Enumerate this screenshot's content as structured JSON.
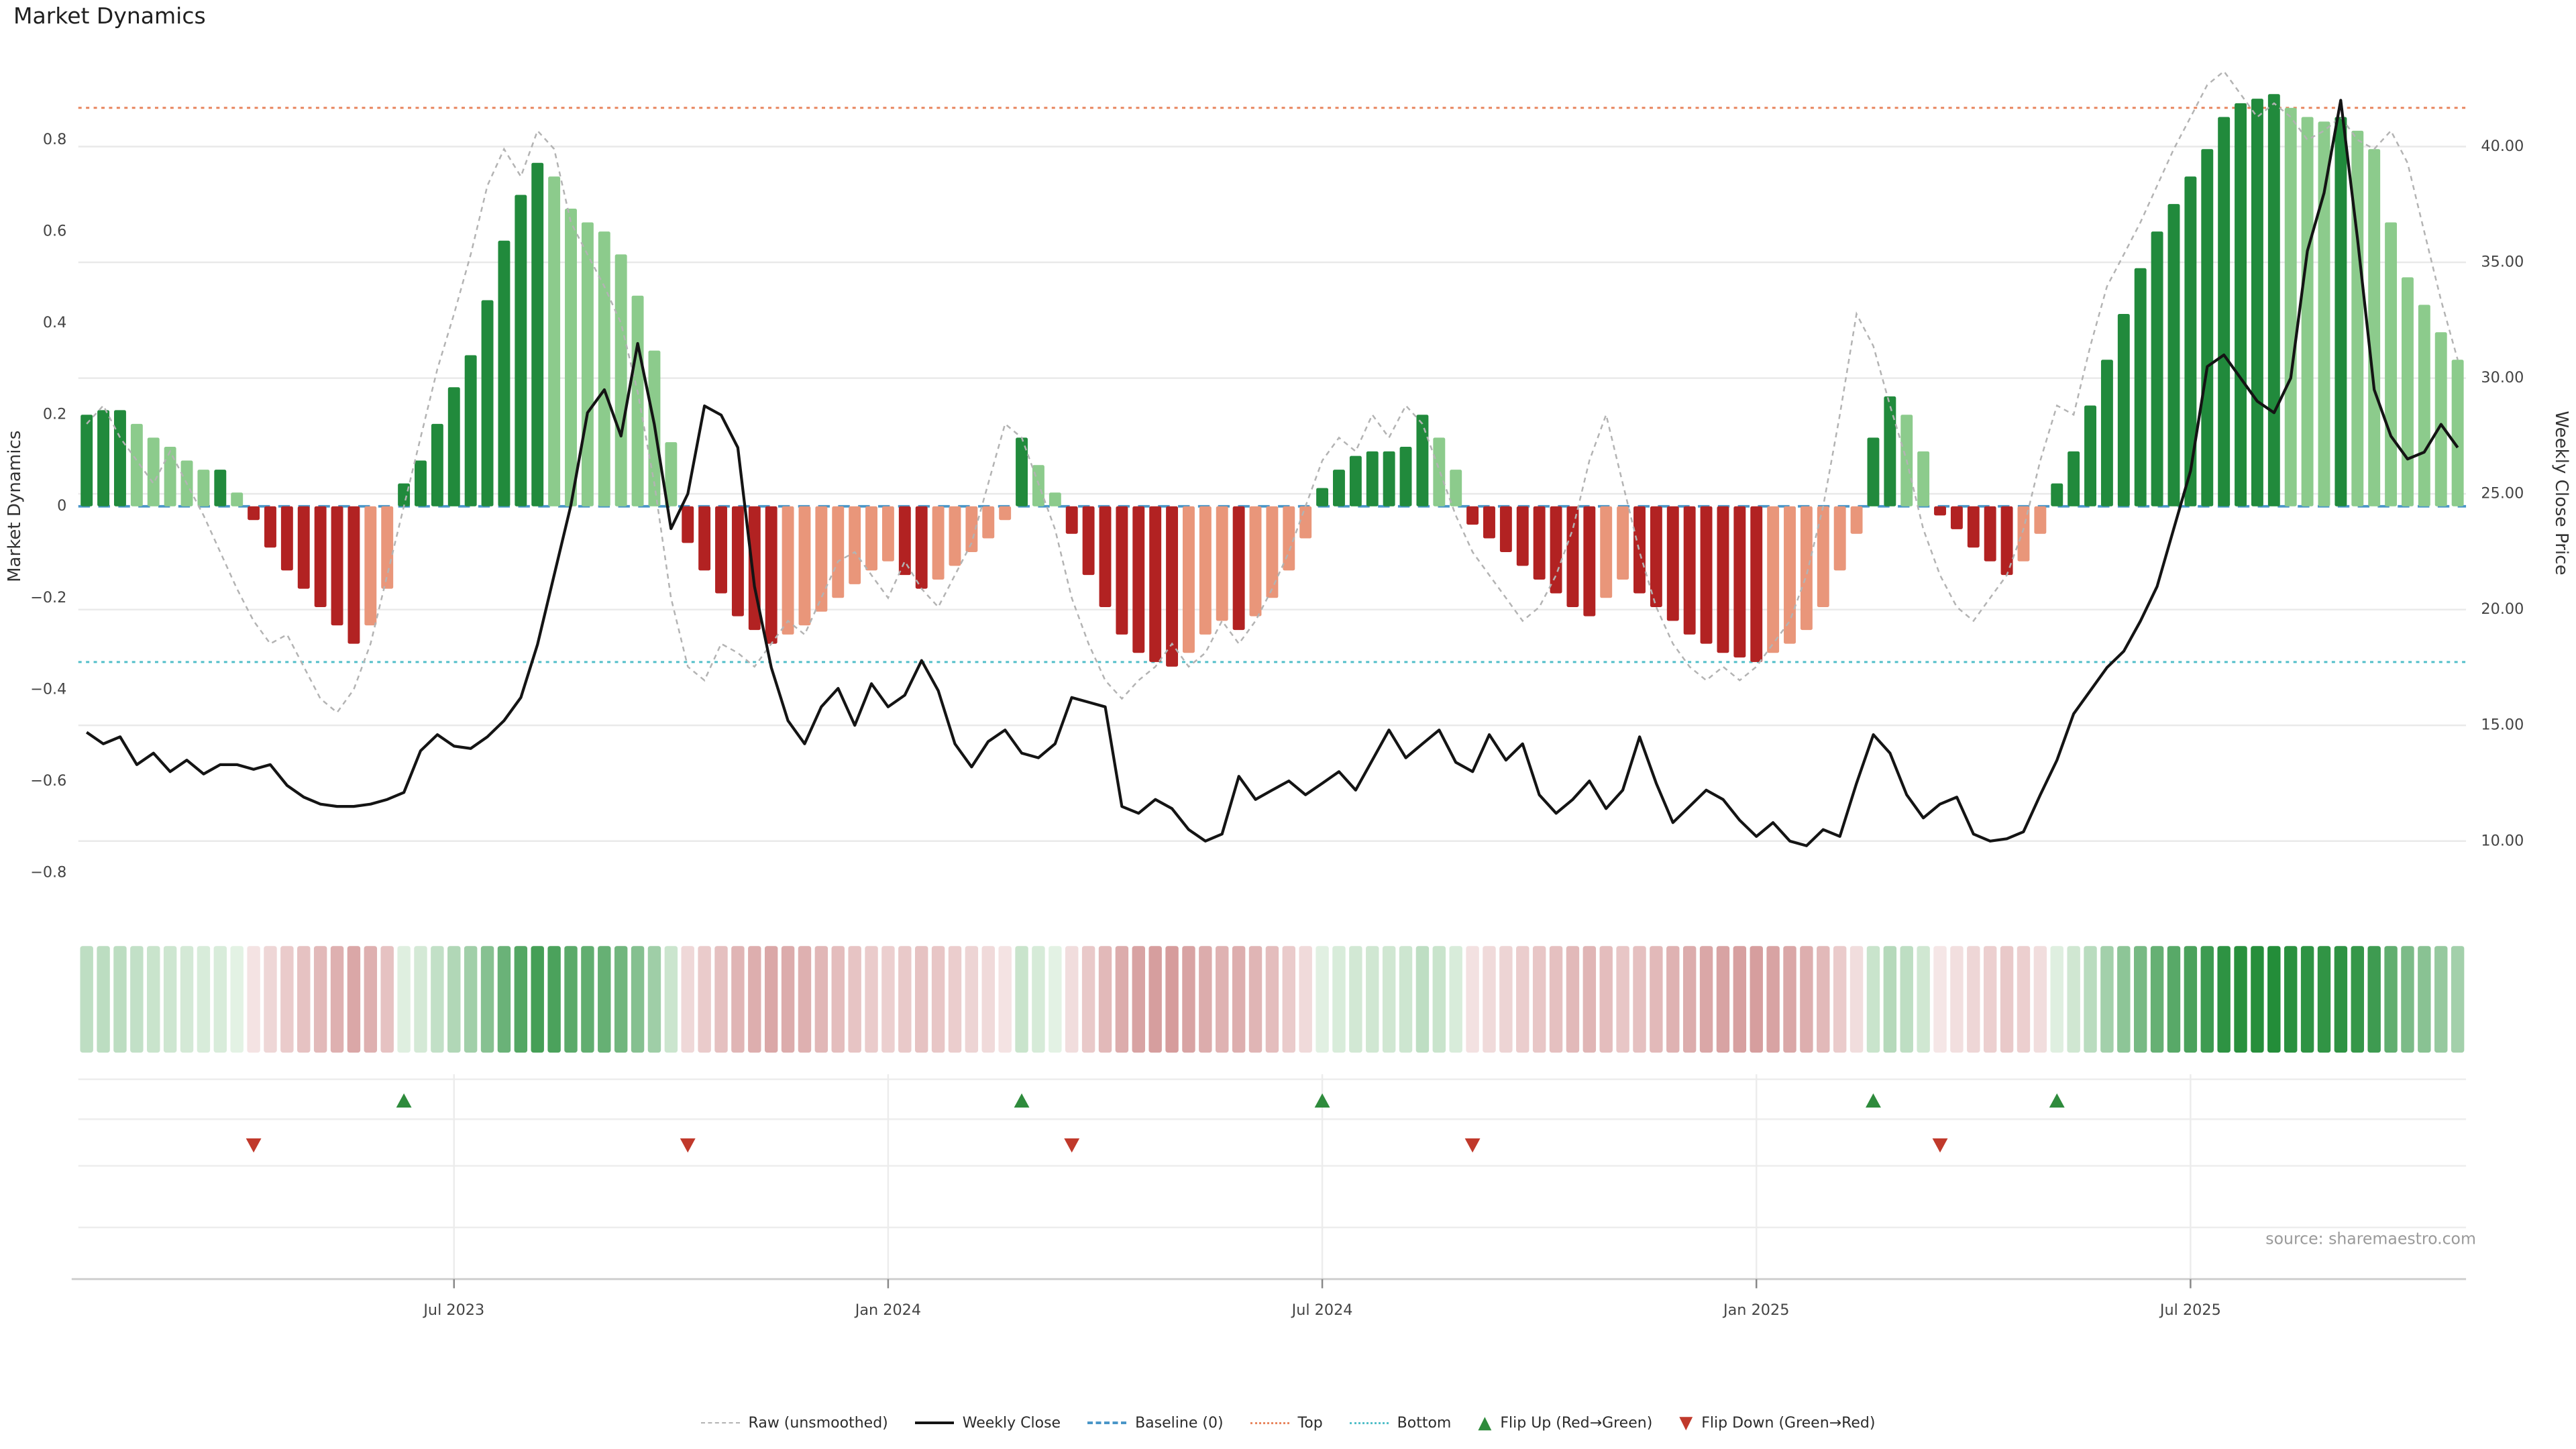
{
  "title": "Market Dynamics",
  "source": "source: sharemaestro.com",
  "colors": {
    "bar_green_dark": "#218a3c",
    "bar_green_light": "#8ccb8c",
    "bar_red_dark": "#b22222",
    "bar_red_light": "#e9967a",
    "raw_line": "#b3b3b3",
    "close_line": "#141414",
    "baseline": "#4a96c8",
    "top_line": "#e8865f",
    "bottom_line": "#53bfc9",
    "grid": "#e9e9e9",
    "axis_line": "#cfcfcf",
    "tick_text": "#444444",
    "axis_title_text": "#333333",
    "source_text": "#9a9a9a",
    "flip_up": "#2e8b3c",
    "flip_down": "#c0392b",
    "heat_pos_strong": "#1f8b35",
    "heat_pos_weak": "#eaf5ea",
    "heat_neg_strong": "#9f1d1d",
    "heat_neg_weak": "#f7eaea"
  },
  "left_axis": {
    "label": "Market Dynamics",
    "ticks": [
      {
        "label": "0.8",
        "v": 0.8
      },
      {
        "label": "0.6",
        "v": 0.6
      },
      {
        "label": "0.4",
        "v": 0.4
      },
      {
        "label": "0.2",
        "v": 0.2
      },
      {
        "label": "0",
        "v": 0
      },
      {
        "label": "−0.2",
        "v": -0.2
      },
      {
        "label": "−0.4",
        "v": -0.4
      },
      {
        "label": "−0.6",
        "v": -0.6
      },
      {
        "label": "−0.8",
        "v": -0.8
      }
    ]
  },
  "right_axis": {
    "label": "Weekly Close Price",
    "ticks": [
      {
        "label": "40.00",
        "v": 40
      },
      {
        "label": "35.00",
        "v": 35
      },
      {
        "label": "30.00",
        "v": 30
      },
      {
        "label": "25.00",
        "v": 25
      },
      {
        "label": "20.00",
        "v": 20
      },
      {
        "label": "15.00",
        "v": 15
      },
      {
        "label": "10.00",
        "v": 10
      }
    ]
  },
  "legend": {
    "items": [
      {
        "label": "Raw (unsmoothed)"
      },
      {
        "label": "Weekly Close"
      },
      {
        "label": "Baseline (0)"
      },
      {
        "label": "Top"
      },
      {
        "label": "Bottom"
      },
      {
        "label": "Flip Up (Red→Green)"
      },
      {
        "label": "Flip Down (Green→Red)"
      }
    ]
  },
  "chart_data": {
    "type": "bar+line",
    "weeks": 143,
    "x_ticks": [
      {
        "week": 22,
        "label": "Jul 2023"
      },
      {
        "week": 48,
        "label": "Jan 2024"
      },
      {
        "week": 74,
        "label": "Jul 2024"
      },
      {
        "week": 100,
        "label": "Jan 2025"
      },
      {
        "week": 126,
        "label": "Jul 2025"
      }
    ],
    "left_ylim": [
      -0.9,
      1.0
    ],
    "right_ylim": [
      8.5,
      43
    ],
    "reference_lines": {
      "baseline": 0,
      "top": 0.87,
      "bottom": -0.34
    },
    "flip_up_weeks": [
      19,
      56,
      74,
      107,
      118
    ],
    "flip_down_weeks": [
      10,
      36,
      59,
      83,
      111
    ],
    "series": [
      {
        "name": "Market Dynamics (smoothed)",
        "type": "bar",
        "axis": "left",
        "values": [
          0.2,
          0.21,
          0.21,
          0.18,
          0.15,
          0.13,
          0.1,
          0.08,
          0.08,
          0.03,
          -0.03,
          -0.09,
          -0.14,
          -0.18,
          -0.22,
          -0.26,
          -0.3,
          -0.26,
          -0.18,
          0.05,
          0.1,
          0.18,
          0.26,
          0.33,
          0.45,
          0.58,
          0.68,
          0.75,
          0.72,
          0.65,
          0.62,
          0.6,
          0.55,
          0.46,
          0.34,
          0.14,
          -0.08,
          -0.14,
          -0.19,
          -0.24,
          -0.27,
          -0.3,
          -0.28,
          -0.26,
          -0.23,
          -0.2,
          -0.17,
          -0.14,
          -0.12,
          -0.15,
          -0.18,
          -0.16,
          -0.13,
          -0.1,
          -0.07,
          -0.03,
          0.15,
          0.09,
          0.03,
          -0.06,
          -0.15,
          -0.22,
          -0.28,
          -0.32,
          -0.34,
          -0.35,
          -0.32,
          -0.28,
          -0.25,
          -0.27,
          -0.24,
          -0.2,
          -0.14,
          -0.07,
          0.04,
          0.08,
          0.11,
          0.12,
          0.12,
          0.13,
          0.2,
          0.15,
          0.08,
          -0.04,
          -0.07,
          -0.1,
          -0.13,
          -0.16,
          -0.19,
          -0.22,
          -0.24,
          -0.2,
          -0.16,
          -0.19,
          -0.22,
          -0.25,
          -0.28,
          -0.3,
          -0.32,
          -0.33,
          -0.34,
          -0.32,
          -0.3,
          -0.27,
          -0.22,
          -0.14,
          -0.06,
          0.15,
          0.24,
          0.2,
          0.12,
          -0.02,
          -0.05,
          -0.09,
          -0.12,
          -0.15,
          -0.12,
          -0.06,
          0.05,
          0.12,
          0.22,
          0.32,
          0.42,
          0.52,
          0.6,
          0.66,
          0.72,
          0.78,
          0.85,
          0.88,
          0.89,
          0.9,
          0.87,
          0.85,
          0.84,
          0.85,
          0.82,
          0.78,
          0.62,
          0.5,
          0.44,
          0.38,
          0.32
        ]
      },
      {
        "name": "Raw (unsmoothed)",
        "type": "line",
        "style": "dashed",
        "axis": "left",
        "values": [
          0.18,
          0.22,
          0.15,
          0.1,
          0.05,
          0.12,
          0.05,
          -0.02,
          -0.1,
          -0.18,
          -0.25,
          -0.3,
          -0.28,
          -0.35,
          -0.42,
          -0.45,
          -0.4,
          -0.3,
          -0.15,
          0.0,
          0.15,
          0.3,
          0.42,
          0.55,
          0.7,
          0.78,
          0.72,
          0.82,
          0.78,
          0.62,
          0.55,
          0.48,
          0.4,
          0.25,
          0.05,
          -0.2,
          -0.35,
          -0.38,
          -0.3,
          -0.32,
          -0.35,
          -0.3,
          -0.25,
          -0.28,
          -0.2,
          -0.12,
          -0.1,
          -0.15,
          -0.2,
          -0.12,
          -0.18,
          -0.22,
          -0.15,
          -0.08,
          0.05,
          0.18,
          0.15,
          0.05,
          -0.05,
          -0.2,
          -0.3,
          -0.38,
          -0.42,
          -0.38,
          -0.35,
          -0.3,
          -0.35,
          -0.32,
          -0.25,
          -0.3,
          -0.25,
          -0.18,
          -0.1,
          0.0,
          0.1,
          0.15,
          0.12,
          0.2,
          0.15,
          0.22,
          0.18,
          0.08,
          -0.02,
          -0.1,
          -0.15,
          -0.2,
          -0.25,
          -0.22,
          -0.15,
          -0.05,
          0.1,
          0.2,
          0.05,
          -0.1,
          -0.22,
          -0.3,
          -0.35,
          -0.38,
          -0.35,
          -0.38,
          -0.35,
          -0.3,
          -0.25,
          -0.15,
          0.0,
          0.2,
          0.42,
          0.35,
          0.22,
          0.1,
          -0.05,
          -0.15,
          -0.22,
          -0.25,
          -0.2,
          -0.15,
          -0.05,
          0.1,
          0.22,
          0.2,
          0.35,
          0.48,
          0.55,
          0.62,
          0.7,
          0.78,
          0.85,
          0.92,
          0.95,
          0.9,
          0.85,
          0.88,
          0.85,
          0.8,
          0.82,
          0.85,
          0.8,
          0.78,
          0.82,
          0.75,
          0.6,
          0.45,
          0.32
        ]
      },
      {
        "name": "Weekly Close",
        "type": "line",
        "axis": "right",
        "values": [
          14.7,
          14.2,
          14.5,
          13.3,
          13.8,
          13.0,
          13.5,
          12.9,
          13.3,
          13.3,
          13.1,
          13.3,
          12.4,
          11.9,
          11.6,
          11.5,
          11.5,
          11.6,
          11.8,
          12.1,
          13.9,
          14.6,
          14.1,
          14.0,
          14.5,
          15.2,
          16.2,
          18.5,
          21.5,
          24.5,
          28.5,
          29.5,
          27.5,
          31.5,
          28.0,
          23.5,
          25.0,
          28.8,
          28.4,
          27.0,
          21.0,
          17.5,
          15.2,
          14.2,
          15.8,
          16.6,
          15.0,
          16.8,
          15.8,
          16.3,
          17.8,
          16.5,
          14.2,
          13.2,
          14.3,
          14.8,
          13.8,
          13.6,
          14.2,
          16.2,
          16.0,
          15.8,
          11.5,
          11.2,
          11.8,
          11.4,
          10.5,
          10.0,
          10.3,
          12.8,
          11.8,
          12.2,
          12.6,
          12.0,
          12.5,
          13.0,
          12.2,
          13.5,
          14.8,
          13.6,
          14.2,
          14.8,
          13.4,
          13.0,
          14.6,
          13.5,
          14.2,
          12.0,
          11.2,
          11.8,
          12.6,
          11.4,
          12.2,
          14.5,
          12.5,
          10.8,
          11.5,
          12.2,
          11.8,
          10.9,
          10.2,
          10.8,
          10.0,
          9.8,
          10.5,
          10.2,
          12.5,
          14.6,
          13.8,
          12.0,
          11.0,
          11.6,
          11.9,
          10.3,
          10.0,
          10.1,
          10.4,
          12.0,
          13.5,
          15.5,
          16.5,
          17.5,
          18.2,
          19.5,
          21.0,
          23.5,
          26.0,
          30.5,
          31.0,
          30.0,
          29.0,
          28.5,
          30.0,
          35.5,
          38.0,
          42.0,
          36.0,
          29.5,
          27.5,
          26.5,
          26.8,
          28.0,
          27.0
        ]
      }
    ]
  }
}
